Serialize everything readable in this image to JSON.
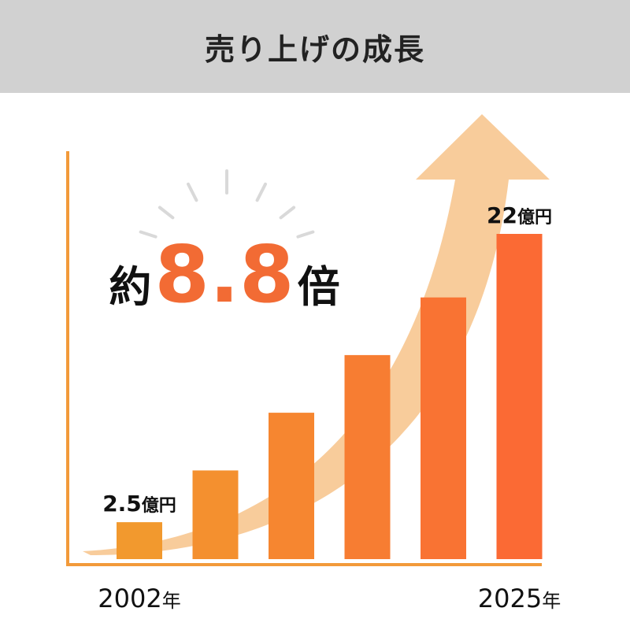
{
  "header": {
    "title": "売り上げの成長"
  },
  "colors": {
    "header_bg": "#d1d1d1",
    "axis": "#f29a3a",
    "arrow": "#f8c996",
    "accent": "#f26b34",
    "bar_start": "#f2992e",
    "bar_end": "#fb6a34",
    "text": "#111111"
  },
  "badge": {
    "prefix": "約",
    "value": "8.8",
    "suffix": "倍"
  },
  "chart_data": {
    "type": "bar",
    "title": "売り上げの成長",
    "xlabel": "",
    "ylabel": "",
    "grid": false,
    "ylim": [
      0,
      25
    ],
    "categories": [
      "2002年",
      "",
      "",
      "",
      "",
      "2025年"
    ],
    "values": [
      2.5,
      6,
      9.9,
      13.8,
      17.7,
      22
    ],
    "data_labels": [
      {
        "index": 0,
        "number": "2.5",
        "unit": "億円"
      },
      {
        "index": 5,
        "number": "22",
        "unit": "億円"
      }
    ],
    "x_tick_labels": [
      {
        "index": 0,
        "number": "2002",
        "unit": "年"
      },
      {
        "index": 5,
        "number": "2025",
        "unit": "年"
      }
    ]
  }
}
